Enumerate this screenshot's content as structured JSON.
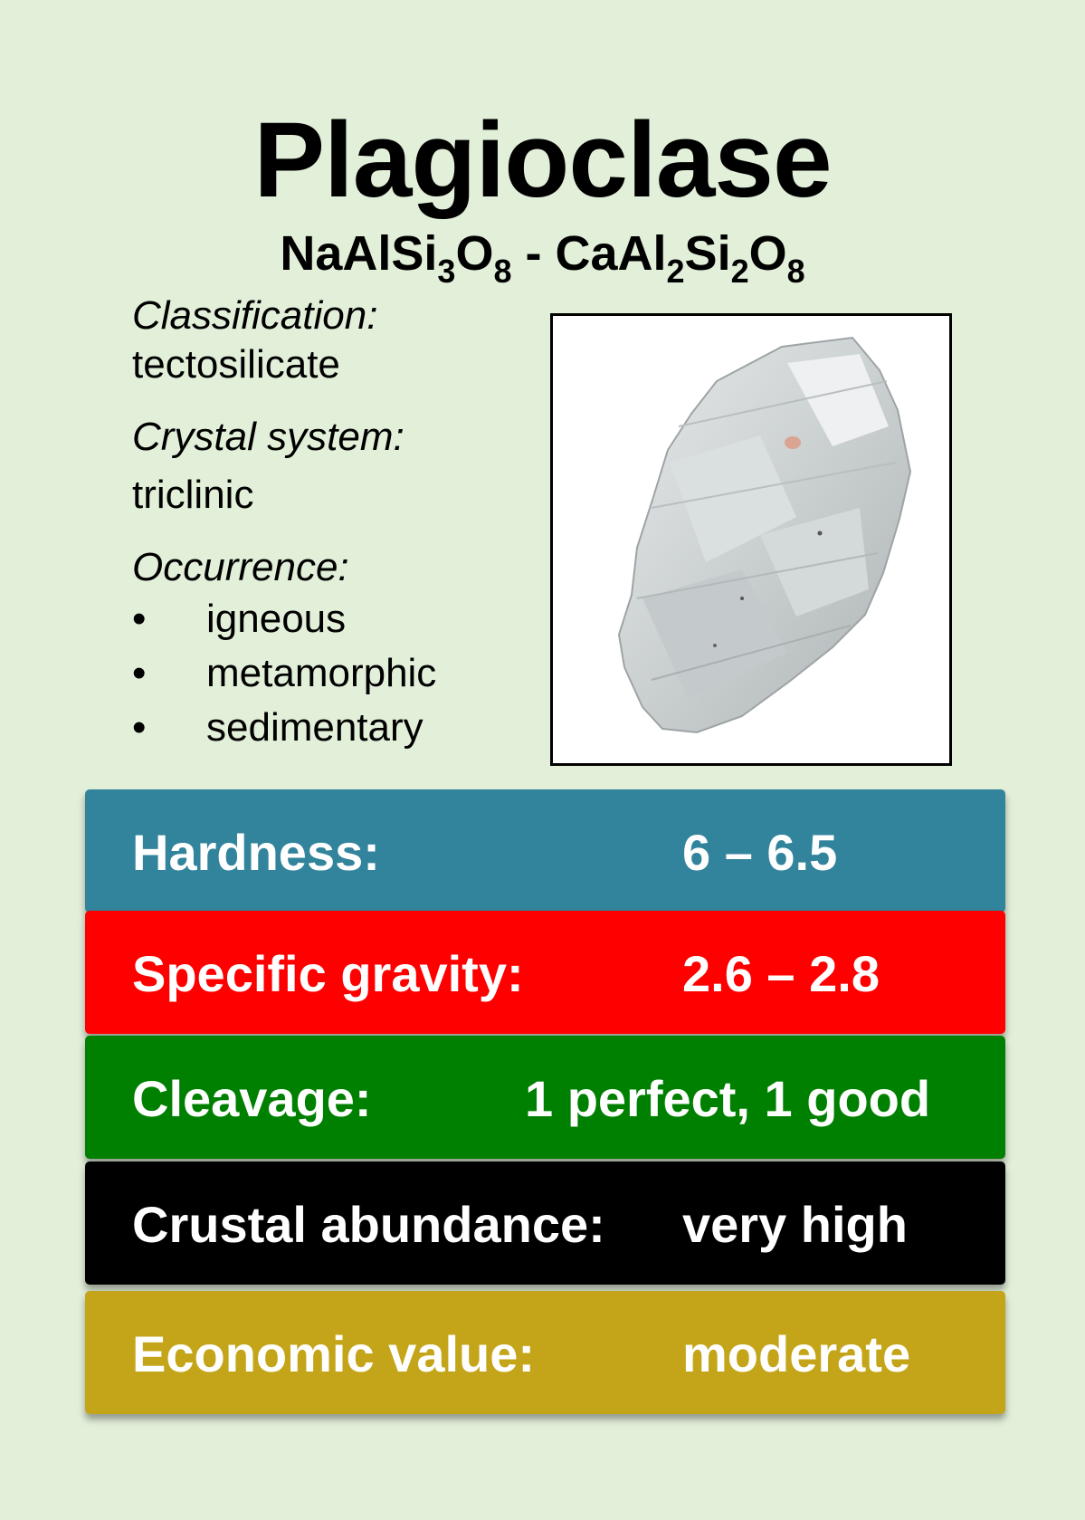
{
  "card": {
    "title": "Plagioclase",
    "formula": {
      "part1": "NaAlSi",
      "sub1": "3",
      "part2": "O",
      "sub2": "8",
      "sep": " - CaAl",
      "sub3": "2",
      "part3": "Si",
      "sub4": "2",
      "part4": "O",
      "sub5": "8"
    },
    "classification_label": "Classification:",
    "classification": "tectosilicate",
    "crystal_system_label": "Crystal system:",
    "crystal_system": "triclinic",
    "occurrence_label": "Occurrence:",
    "occurrence": [
      "igneous",
      "metamorphic",
      "sedimentary"
    ],
    "bullet": "•"
  },
  "properties": [
    {
      "label": "Hardness:",
      "value": "6 – 6.5",
      "color": "#31849b"
    },
    {
      "label": "Specific gravity:",
      "value": "2.6 – 2.8",
      "color": "#ff0000"
    },
    {
      "label": "Cleavage:",
      "value": "1 perfect, 1 good",
      "color": "#008000"
    },
    {
      "label": "Crustal abundance:",
      "value": "very high",
      "color": "#000000"
    },
    {
      "label": "Economic value:",
      "value": "moderate",
      "color": "#c4a519"
    }
  ]
}
